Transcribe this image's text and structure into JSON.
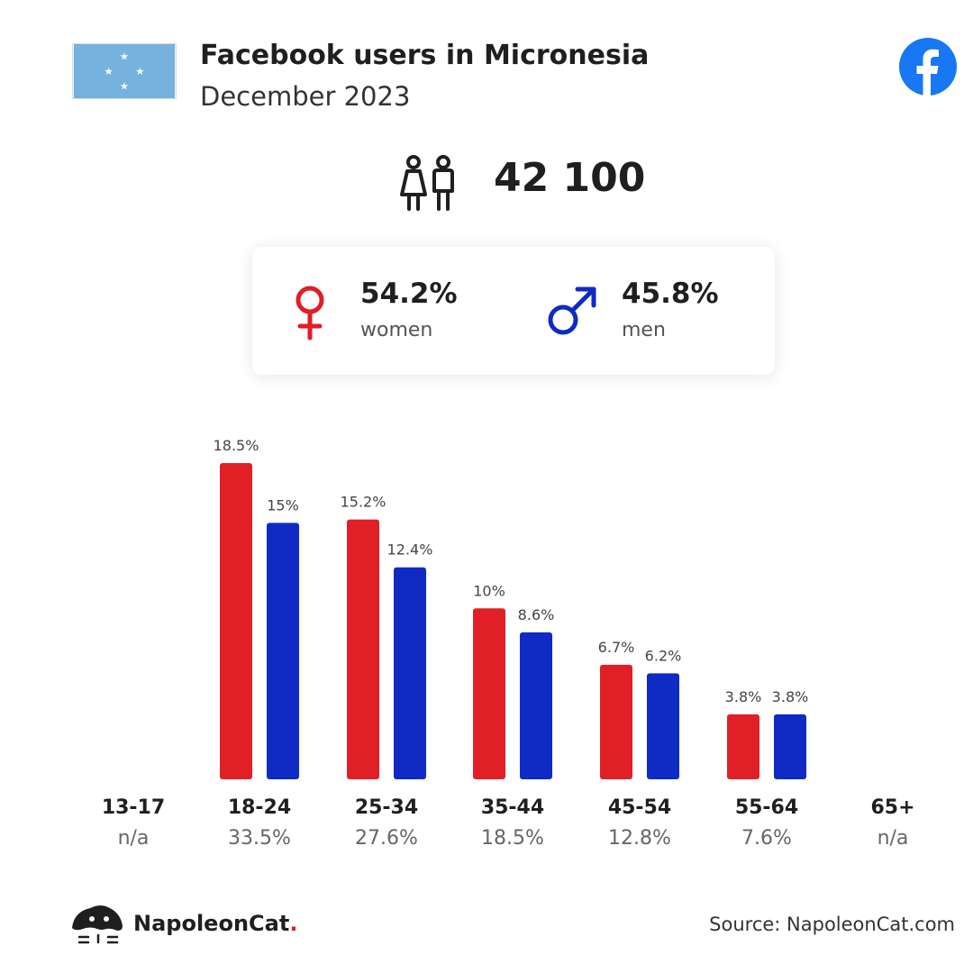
{
  "header": {
    "title": "Facebook users in Micronesia",
    "subtitle": "December 2023"
  },
  "total": {
    "value": "42 100"
  },
  "gender": {
    "women": {
      "pct": "54.2%",
      "label": "women"
    },
    "men": {
      "pct": "45.8%",
      "label": "men"
    }
  },
  "colors": {
    "women": "#e01f26",
    "men": "#0f2bc4",
    "flag": "#75b2dd",
    "facebook": "#1877f2"
  },
  "chart_data": {
    "type": "bar",
    "categories": [
      "13-17",
      "18-24",
      "25-34",
      "35-44",
      "45-54",
      "55-64",
      "65+"
    ],
    "series": [
      {
        "values": [
          null,
          18.5,
          15.2,
          10,
          6.7,
          3.8,
          null
        ],
        "labels": [
          "",
          "18.5%",
          "15.2%",
          "10%",
          "6.7%",
          "3.8%",
          ""
        ]
      },
      {
        "values": [
          null,
          15,
          12.4,
          8.6,
          6.2,
          3.8,
          null
        ],
        "labels": [
          "",
          "15%",
          "12.4%",
          "8.6%",
          "6.2%",
          "3.8%",
          ""
        ]
      }
    ],
    "totals": [
      "n/a",
      "33.5%",
      "27.6%",
      "18.5%",
      "12.8%",
      "7.6%",
      "n/a"
    ],
    "ylim": [
      0,
      18.5
    ],
    "grid": false
  },
  "footer": {
    "brand": "NapoleonCat",
    "brand_dot": ".",
    "source": "Source: NapoleonCat.com"
  }
}
